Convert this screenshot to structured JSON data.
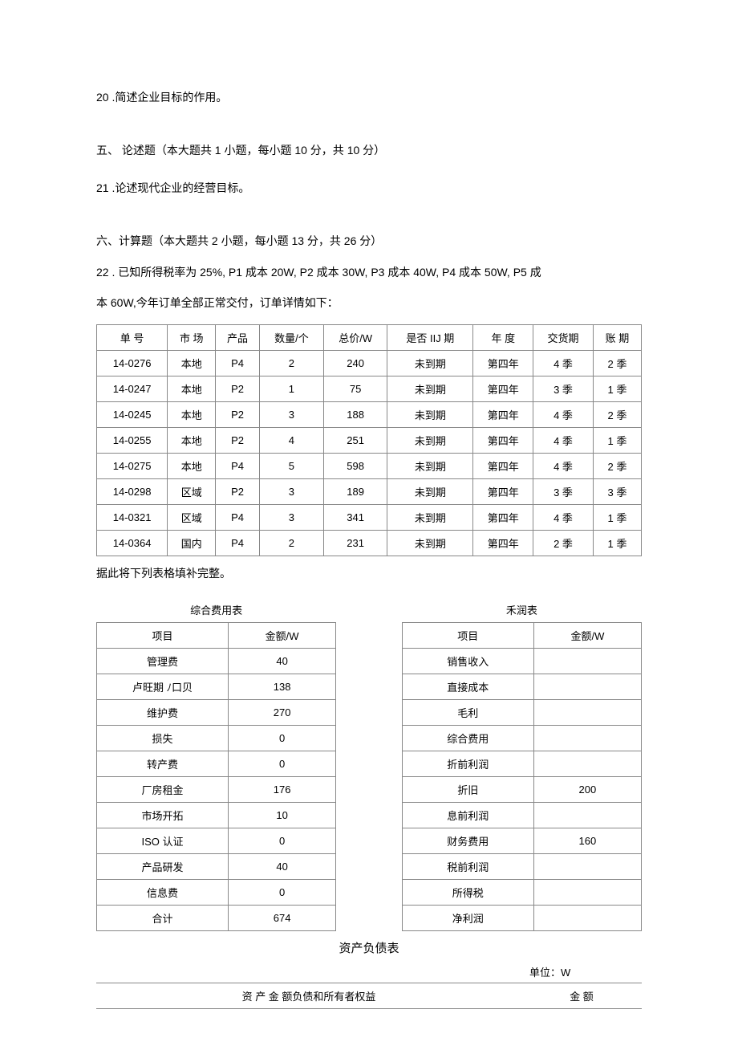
{
  "q20": "20 .简述企业目标的作用。",
  "section5": "五、 论述题（本大题共 1 小题，每小题 10 分，共 10 分）",
  "q21": "21 .论述现代企业的经营目标。",
  "section6": "六、计算题（本大题共 2 小题，每小题 13 分，共 26 分）",
  "q22a": "22 . 已知所得税率为 25%, P1 成本 20W, P2 成本 30W, P3 成本 40W, P4 成本 50W, P5 成",
  "q22b": "本 60W,今年订单全部正常交付，订单详情如下：",
  "order_table": {
    "columns": [
      "单 号",
      "市 场",
      "产品",
      "数量/个",
      "总价/W",
      "是否 IIJ 期",
      "年 度",
      "交货期",
      "账 期"
    ],
    "rows": [
      [
        "14-0276",
        "本地",
        "P4",
        "2",
        "240",
        "未到期",
        "第四年",
        "4 季",
        "2 季"
      ],
      [
        "14-0247",
        "本地",
        "P2",
        "1",
        "75",
        "未到期",
        "第四年",
        "3 季",
        "1 季"
      ],
      [
        "14-0245",
        "本地",
        "P2",
        "3",
        "188",
        "未到期",
        "第四年",
        "4 季",
        "2 季"
      ],
      [
        "14-0255",
        "本地",
        "P2",
        "4",
        "251",
        "未到期",
        "第四年",
        "4 季",
        "1 季"
      ],
      [
        "14-0275",
        "本地",
        "P4",
        "5",
        "598",
        "未到期",
        "第四年",
        "4 季",
        "2 季"
      ],
      [
        "14-0298",
        "区域",
        "P2",
        "3",
        "189",
        "未到期",
        "第四年",
        "3 季",
        "3 季"
      ],
      [
        "14-0321",
        "区域",
        "P4",
        "3",
        "341",
        "未到期",
        "第四年",
        "4 季",
        "1 季"
      ],
      [
        "14-0364",
        "国内",
        "P4",
        "2",
        "231",
        "未到期",
        "第四年",
        "2 季",
        "1 季"
      ]
    ]
  },
  "aux_text": "据此将下列表格填补完整。",
  "expense_table": {
    "title": "综合费用表",
    "header": [
      "项目",
      "金额/W"
    ],
    "rows": [
      [
        "管理费",
        "40"
      ],
      [
        "卢旺期 ﾉ口贝",
        "138"
      ],
      [
        "维护费",
        "270"
      ],
      [
        "损失",
        "0"
      ],
      [
        "转产费",
        "0"
      ],
      [
        "厂房租金",
        "176"
      ],
      [
        "市场开拓",
        "10"
      ],
      [
        "ISO 认证",
        "0"
      ],
      [
        "产品研发",
        "40"
      ],
      [
        "信息费",
        "0"
      ],
      [
        "合计",
        "674"
      ]
    ]
  },
  "profit_table": {
    "title": "禾润表",
    "header": [
      "项目",
      "金额/W"
    ],
    "rows": [
      [
        "销售收入",
        ""
      ],
      [
        "直接成本",
        ""
      ],
      [
        "毛利",
        ""
      ],
      [
        "综合费用",
        ""
      ],
      [
        "折前利润",
        ""
      ],
      [
        "折旧",
        "200"
      ],
      [
        "息前利润",
        ""
      ],
      [
        "财务费用",
        "160"
      ],
      [
        "税前利润",
        ""
      ],
      [
        "所得税",
        ""
      ],
      [
        "净利润",
        ""
      ]
    ]
  },
  "balance": {
    "title": "资产负债表",
    "unit": "单位：W",
    "header_col1": "资 产 金 额负债和所有者权益",
    "header_col2": "金 额"
  },
  "style": {
    "bg": "#ffffff",
    "text": "#000000",
    "border": "#888888",
    "base_font_size": 14,
    "table_font_size": 13
  }
}
